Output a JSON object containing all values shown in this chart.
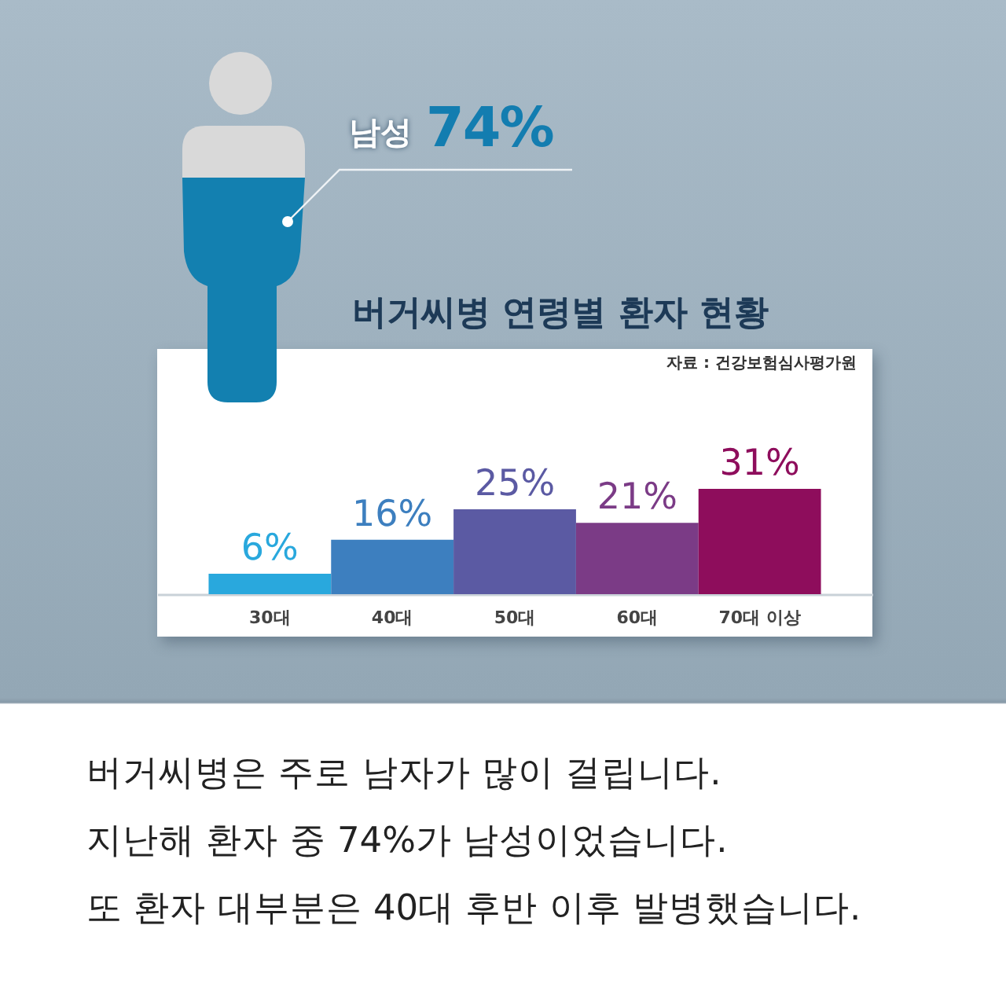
{
  "chart_data": {
    "type": "bar",
    "title": "버거씨병 연령별 환자 현황",
    "categories": [
      "30대",
      "40대",
      "50대",
      "60대",
      "70대 이상"
    ],
    "values": [
      6,
      16,
      25,
      21,
      31
    ],
    "colors": [
      "#29a8dd",
      "#3d7fbf",
      "#5b5aa3",
      "#7b3b86",
      "#8e0d5c"
    ],
    "value_labels": [
      "6%",
      "16%",
      "25%",
      "21%",
      "31%"
    ],
    "annotations": [
      "자료 : 건강보험심사평가원",
      "남성",
      "74%",
      "버거씨병은 주로 남자가 많이 걸립니다.",
      "지난해 환자 중 74%가 남성이었습니다.",
      "또 환자 대부분은 40대 후반 이후 발병했습니다."
    ]
  }
}
